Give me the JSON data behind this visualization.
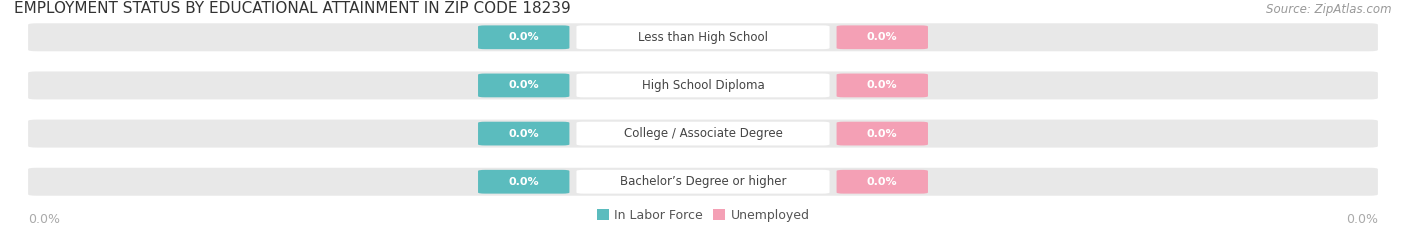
{
  "title": "EMPLOYMENT STATUS BY EDUCATIONAL ATTAINMENT IN ZIP CODE 18239",
  "source": "Source: ZipAtlas.com",
  "categories": [
    "Less than High School",
    "High School Diploma",
    "College / Associate Degree",
    "Bachelor’s Degree or higher"
  ],
  "labor_force_values": [
    0.0,
    0.0,
    0.0,
    0.0
  ],
  "unemployed_values": [
    0.0,
    0.0,
    0.0,
    0.0
  ],
  "labor_force_color": "#5bbcbe",
  "unemployed_color": "#f4a0b5",
  "bar_bg_color": "#e8e8e8",
  "title_fontsize": 11,
  "source_fontsize": 8.5,
  "label_fontsize": 8.5,
  "legend_fontsize": 9,
  "badge_fontsize": 8,
  "bg_color": "#ffffff",
  "bar_label_color": "#ffffff",
  "category_label_color": "#444444",
  "axis_label_color": "#aaaaaa",
  "left_axis_label": "0.0%",
  "right_axis_label": "0.0%",
  "title_color": "#333333",
  "source_color": "#999999"
}
